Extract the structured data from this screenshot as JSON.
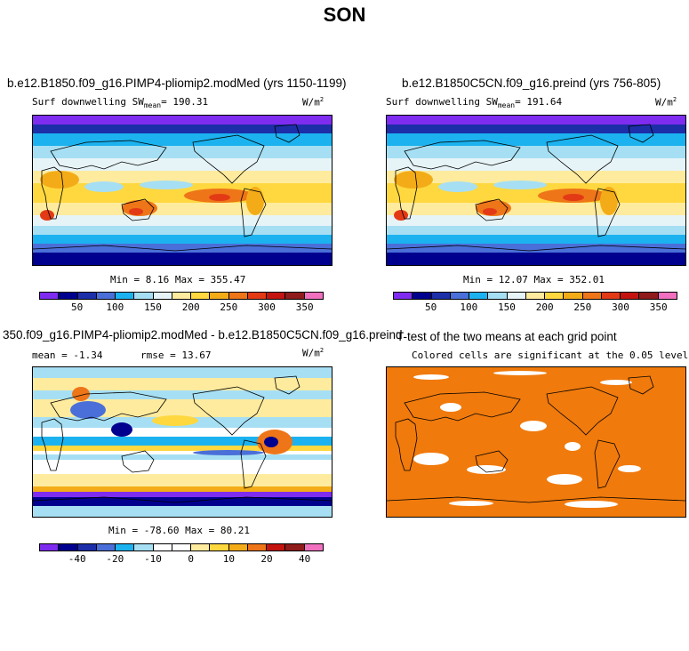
{
  "figure": {
    "title": "SON"
  },
  "panels": {
    "p1": {
      "title": "b.e12.B1850.f09_g16.PIMP4-pliomip2.modMed (yrs 1150-1199)",
      "left_label": "Surf downwelling SW",
      "mean_word": "mean",
      "mean_value": "= 190.31",
      "units": "W/m",
      "units_exp": "2",
      "min_max": "Min =   8.16 Max = 355.47"
    },
    "p2": {
      "title": "b.e12.B1850C5CN.f09_g16.preind (yrs 756-805)",
      "left_label": "Surf downwelling SW",
      "mean_word": "mean",
      "mean_value": "= 191.64",
      "units": "W/m",
      "units_exp": "2",
      "min_max": "Min =  12.07 Max = 352.01"
    },
    "p3": {
      "title": "350.f09_g16.PIMP4-pliomip2.modMed - b.e12.B1850C5CN.f09_g16.preind",
      "mean_text": "mean =   -1.34",
      "rmse_text": "rmse =  13.67",
      "units": "W/m",
      "units_exp": "2",
      "min_max": "Min = -78.60 Max =  80.21"
    },
    "p4": {
      "title": "T-test of the two means at each grid point",
      "subtitle": "Colored cells are significant at the 0.05 level"
    }
  },
  "colorbars": {
    "abs_colors": [
      "#7e2cef",
      "#00008f",
      "#1c2ea8",
      "#4a6fd8",
      "#1bb2ef",
      "#a6dff3",
      "#e6f4f8",
      "#ffeb9e",
      "#ffd83f",
      "#f3ac18",
      "#ee7518",
      "#e33a16",
      "#c3140f",
      "#8f1b1b",
      "#f06fbf"
    ],
    "abs_ticks": [
      "50",
      "100",
      "150",
      "200",
      "250",
      "300",
      "350"
    ],
    "diff_colors": [
      "#7e2cef",
      "#00008f",
      "#1c2ea8",
      "#4a6fd8",
      "#1bb2ef",
      "#a6dff3",
      "#ffffff",
      "#ffffff",
      "#ffeb9e",
      "#ffd83f",
      "#f3ac18",
      "#ee7518",
      "#c3140f",
      "#8f1b1b",
      "#f06fbf"
    ],
    "diff_ticks": [
      "-40",
      "-20",
      "-10",
      "0",
      "10",
      "20",
      "40"
    ]
  },
  "colors": {
    "significant": "#f07a0c",
    "land_outline": "#000000"
  },
  "chart_data": [
    {
      "type": "heatmap",
      "title": "b.e12.B1850.f09_g16.PIMP4-pliomip2.modMed (yrs 1150-1199)",
      "variable": "Surf downwelling SW",
      "units": "W/m2",
      "mean": 190.31,
      "min": 8.16,
      "max": 355.47,
      "colorbar_ticks": [
        50,
        100,
        150,
        200,
        250,
        300,
        350
      ]
    },
    {
      "type": "heatmap",
      "title": "b.e12.B1850C5CN.f09_g16.preind (yrs 756-805)",
      "variable": "Surf downwelling SW",
      "units": "W/m2",
      "mean": 191.64,
      "min": 12.07,
      "max": 352.01,
      "colorbar_ticks": [
        50,
        100,
        150,
        200,
        250,
        300,
        350
      ]
    },
    {
      "type": "heatmap",
      "title": "350.f09_g16.PIMP4-pliomip2.modMed - b.e12.B1850C5CN.f09_g16.preind",
      "units": "W/m2",
      "mean": -1.34,
      "rmse": 13.67,
      "min": -78.6,
      "max": 80.21,
      "colorbar_ticks": [
        -40,
        -20,
        -10,
        0,
        10,
        20,
        40
      ]
    },
    {
      "type": "heatmap",
      "title": "T-test of the two means at each grid point",
      "subtitle": "Colored cells are significant at the 0.05 level",
      "significance_level": 0.05
    }
  ]
}
